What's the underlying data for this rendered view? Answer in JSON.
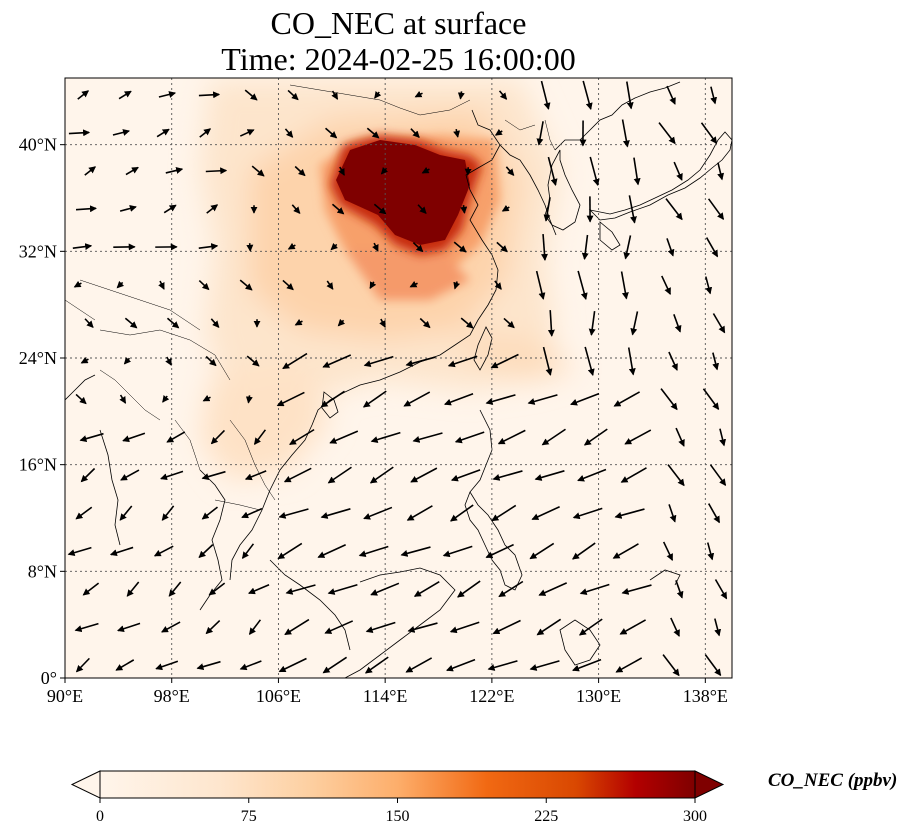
{
  "title": "CO_NEC at surface",
  "subtitle": "Time: 2024-02-25 16:00:00",
  "map": {
    "extent": {
      "lon_min": 90,
      "lon_max": 140,
      "lat_min": 0,
      "lat_max": 45
    },
    "lat_ticks": [
      {
        "value": 0,
        "label": "0°"
      },
      {
        "value": 8,
        "label": "8°N"
      },
      {
        "value": 16,
        "label": "16°N"
      },
      {
        "value": 24,
        "label": "24°N"
      },
      {
        "value": 32,
        "label": "32°N"
      },
      {
        "value": 40,
        "label": "40°N"
      }
    ],
    "lon_ticks": [
      {
        "value": 90,
        "label": "90°E"
      },
      {
        "value": 98,
        "label": "98°E"
      },
      {
        "value": 106,
        "label": "106°E"
      },
      {
        "value": 114,
        "label": "114°E"
      },
      {
        "value": 122,
        "label": "122°E"
      },
      {
        "value": 130,
        "label": "130°E"
      },
      {
        "value": 138,
        "label": "138°E"
      }
    ],
    "gridlines": true,
    "field": "CO_NEC concentration (ppbv), high over North China Plain",
    "colormap": [
      "#fff5eb",
      "#fdd0a2",
      "#fdae6b",
      "#f16913",
      "#d94801",
      "#a63603",
      "#7f0000"
    ]
  },
  "colorbar": {
    "label": "CO_NEC (ppbv)",
    "min": 0,
    "max": 300,
    "ticks": [
      "0",
      "75",
      "150",
      "225",
      "300"
    ],
    "extend": "both"
  }
}
